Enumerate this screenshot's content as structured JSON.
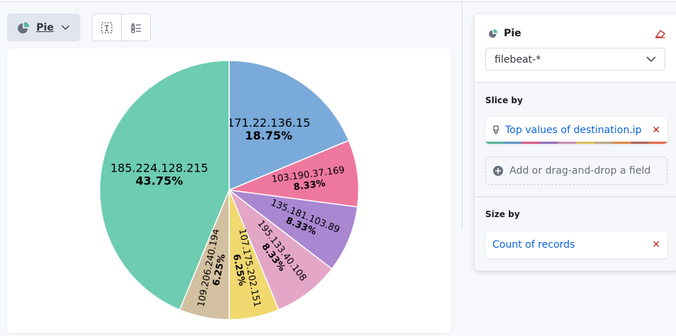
{
  "toolbar": {
    "chart_type_label": "Pie"
  },
  "panel": {
    "title": "Pie",
    "index_pattern": "filebeat-*",
    "slice_by_label": "Slice by",
    "slice_by_field": "Top values of destination.ip",
    "add_field_label": "Add or drag-and-drop a field",
    "size_by_label": "Size by",
    "size_by_field": "Count of records",
    "palette": [
      "#54b399",
      "#6092c0",
      "#d36086",
      "#9170b8",
      "#ca8eae",
      "#d6bf57",
      "#b9a888",
      "#da8b45",
      "#aa6556",
      "#e7664c"
    ]
  },
  "chart_data": {
    "type": "pie",
    "categories": [
      "171.22.136.15",
      "103.190.37.169",
      "135.181.103.89",
      "195.133.40.108",
      "107.175.202.151",
      "109.206.240.194",
      "185.224.128.215"
    ],
    "values": [
      18.75,
      8.33,
      8.33,
      8.33,
      6.25,
      6.25,
      43.75
    ],
    "labels": [
      "18.75%",
      "8.33%",
      "8.33%",
      "8.33%",
      "6.25%",
      "6.25%",
      "43.75%"
    ],
    "colors": [
      "#79aad9",
      "#ee789d",
      "#a987d1",
      "#e4a6c7",
      "#f1d86f",
      "#d2c0a0",
      "#6dccb1"
    ]
  }
}
